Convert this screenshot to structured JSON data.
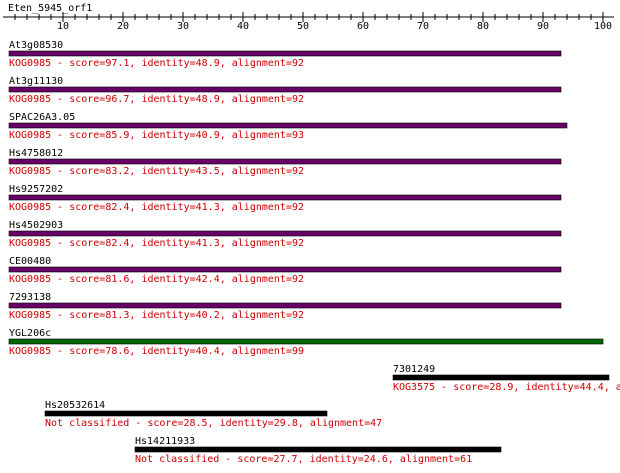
{
  "title": "Eten_5945_orf1",
  "axis": {
    "lim": [
      0,
      101
    ],
    "ticks": [
      10,
      20,
      30,
      40,
      50,
      60,
      70,
      80,
      90,
      100
    ],
    "minor_ticks": [
      2,
      4,
      6,
      8,
      12,
      14,
      16,
      18,
      22,
      24,
      26,
      28,
      32,
      34,
      36,
      38,
      42,
      44,
      46,
      48,
      52,
      54,
      56,
      58,
      62,
      64,
      66,
      68,
      72,
      74,
      76,
      78,
      82,
      84,
      86,
      88,
      92,
      94,
      96,
      98
    ]
  },
  "hits": [
    {
      "name": "At3g08530",
      "label": "KOG0985 - score=97.1, identity=48.9, alignment=92",
      "start": 1,
      "end": 93,
      "color": "#660066"
    },
    {
      "name": "At3g11130",
      "label": "KOG0985 - score=96.7, identity=48.9, alignment=92",
      "start": 1,
      "end": 93,
      "color": "#660066"
    },
    {
      "name": "SPAC26A3.05",
      "label": "KOG0985 - score=85.9, identity=40.9, alignment=93",
      "start": 1,
      "end": 94,
      "color": "#660066"
    },
    {
      "name": "Hs4758012",
      "label": "KOG0985 - score=83.2, identity=43.5, alignment=92",
      "start": 1,
      "end": 93,
      "color": "#660066"
    },
    {
      "name": "Hs9257202",
      "label": "KOG0985 - score=82.4, identity=41.3, alignment=92",
      "start": 1,
      "end": 93,
      "color": "#660066"
    },
    {
      "name": "Hs4502903",
      "label": "KOG0985 - score=82.4, identity=41.3, alignment=92",
      "start": 1,
      "end": 93,
      "color": "#660066"
    },
    {
      "name": "CE00480",
      "label": "KOG0985 - score=81.6, identity=42.4, alignment=92",
      "start": 1,
      "end": 93,
      "color": "#660066"
    },
    {
      "name": "7293138",
      "label": "KOG0985 - score=81.3, identity=40.2, alignment=92",
      "start": 1,
      "end": 93,
      "color": "#660066"
    },
    {
      "name": "YGL206c",
      "label": "KOG0985 - score=78.6, identity=40.4, alignment=99",
      "start": 1,
      "end": 100,
      "color": "#006600"
    },
    {
      "name": "7301249",
      "label": "KOG3575 - score=28.9, identity=44.4, a",
      "start": 65,
      "end": 101,
      "color": "#000000"
    },
    {
      "name": "Hs20532614",
      "label": "Not classified - score=28.5, identity=29.8, alignment=47",
      "start": 7,
      "end": 54,
      "color": "#000000"
    },
    {
      "name": "Hs14211933",
      "label": "Not classified - score=27.7, identity=24.6, alignment=61",
      "start": 22,
      "end": 83,
      "color": "#000000"
    }
  ]
}
